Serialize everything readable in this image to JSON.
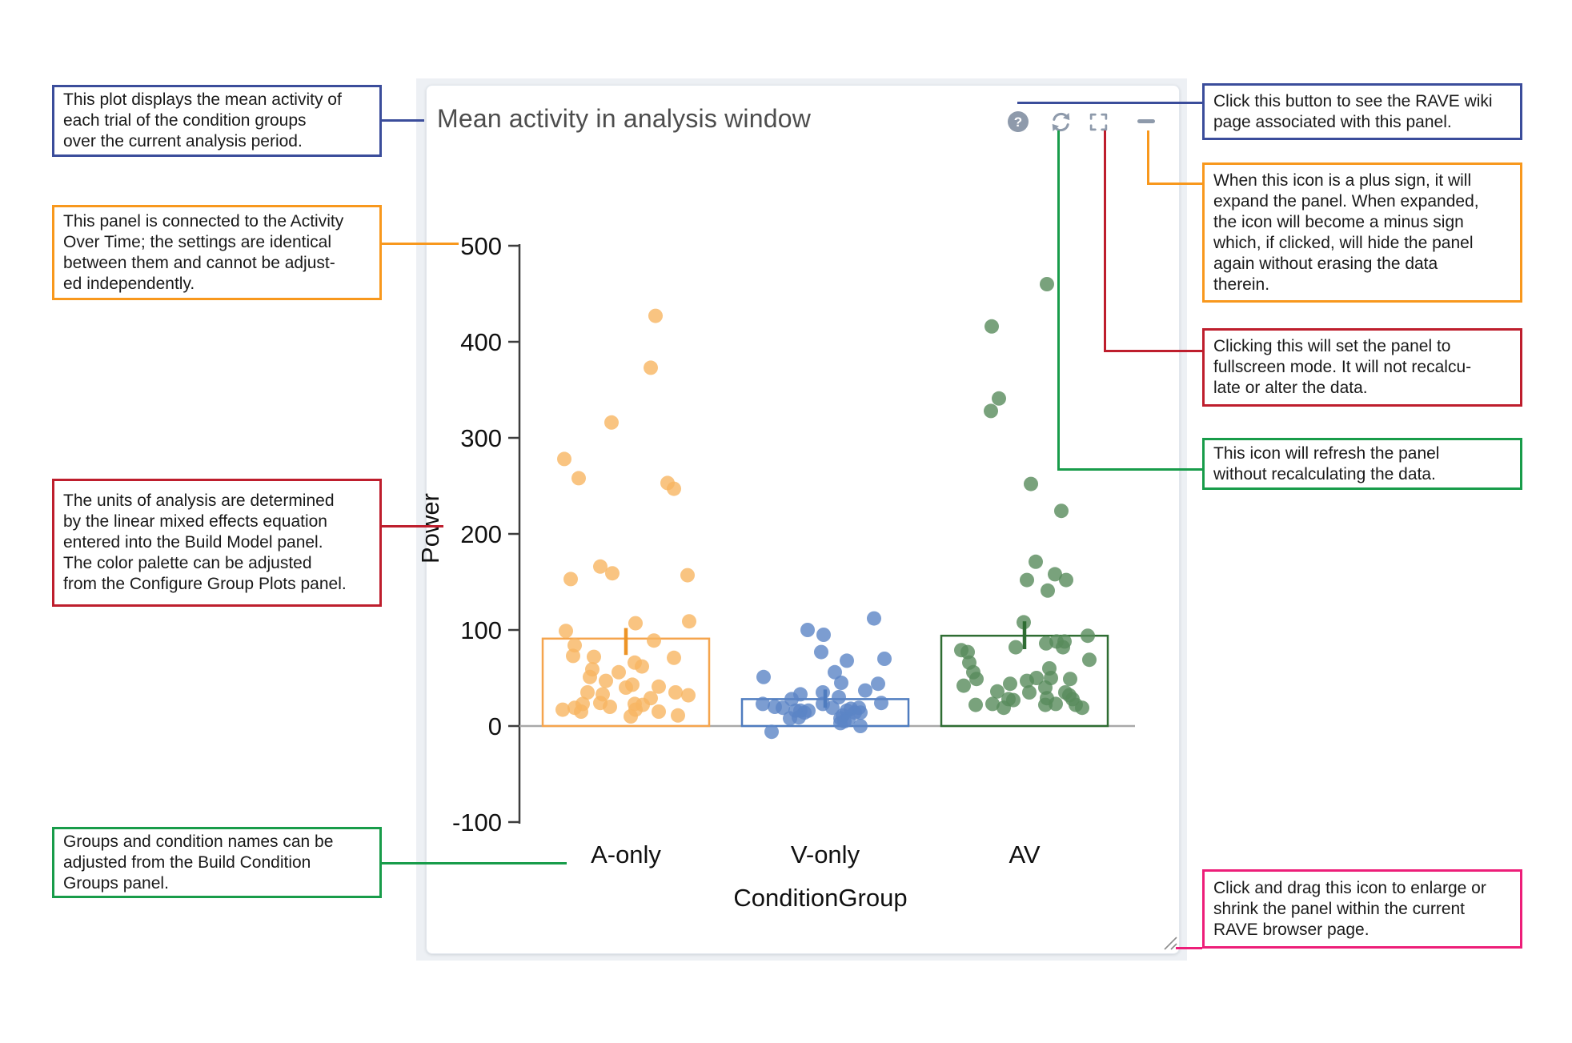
{
  "panel": {
    "title": "Mean activity in analysis window",
    "help_glyph": "?",
    "toolbar": {
      "help": "help",
      "refresh": "refresh",
      "fullscreen": "fullscreen",
      "collapse": "collapse-minus"
    },
    "icon_color": "#8e9aab"
  },
  "callouts": {
    "plot_description": {
      "color": "#3B4D9B",
      "text": "This plot displays the mean activity of\neach trial of the condition groups\nover the current analysis period."
    },
    "linked_panel": {
      "color": "#F8981D",
      "text": "This panel is connected to the Activity\nOver Time; the settings are identical\nbetween them and cannot be adjust-\ned independently."
    },
    "units_note": {
      "color": "#BE1E2D",
      "text": "The units of analysis are determined\nby the linear mixed effects equation\nentered into the Build Model panel.\nThe color palette can be adjusted\nfrom the Configure Group Plots panel."
    },
    "groups_note": {
      "color": "#189C4A",
      "text": "Groups and condition names can be\nadjusted from the Build Condition\nGroups panel."
    },
    "wiki_note": {
      "color": "#3B4D9B",
      "text": "Click this button to see the RAVE wiki\npage associated with this panel."
    },
    "expand_note": {
      "color": "#F8981D",
      "text": "When this icon is a plus sign, it will\nexpand the panel. When expanded,\nthe icon will become a minus sign\nwhich, if clicked, will hide the panel\nagain without erasing the data\ntherein."
    },
    "fullscreen_note": {
      "color": "#BE1E2D",
      "text": "Clicking this will set the panel to\nfullscreen mode. It will not recalcu-\nlate or alter the data."
    },
    "refresh_note": {
      "color": "#189C4A",
      "text": "This icon will refresh the panel\nwithout recalculating the data."
    },
    "resize_note": {
      "color": "#ED1E79",
      "text": "Click and drag this icon to enlarge or\nshrink the panel within the current\nRAVE browser page."
    }
  },
  "chart_data": {
    "type": "bar",
    "subtype": "bar-with-jittered-points-and-error-bars",
    "title": "Mean activity in analysis window",
    "xlabel": "ConditionGroup",
    "ylabel": "Power",
    "ylim": [
      -100,
      500
    ],
    "yticks": [
      500,
      400,
      300,
      200,
      100,
      0,
      -100
    ],
    "categories": [
      "A-only",
      "V-only",
      "AV"
    ],
    "grid": false,
    "legend": "none",
    "groups": [
      {
        "label": "A-only",
        "bar_mean": 91,
        "ci": [
          74,
          102
        ],
        "bar_color": "#F5A54E",
        "err_color": "#ED9426",
        "point_color": "#F7B562",
        "points": [
          [
            37,
            427
          ],
          [
            31,
            373
          ],
          [
            -18,
            316
          ],
          [
            -77,
            278
          ],
          [
            -59,
            258
          ],
          [
            52,
            253
          ],
          [
            60,
            247
          ],
          [
            -32,
            166
          ],
          [
            -17,
            159
          ],
          [
            -69,
            153
          ],
          [
            77,
            157
          ],
          [
            -75,
            99
          ],
          [
            12,
            107
          ],
          [
            79,
            109
          ],
          [
            -64,
            84
          ],
          [
            35,
            89
          ],
          [
            -66,
            73
          ],
          [
            -40,
            72
          ],
          [
            60,
            71
          ],
          [
            11,
            66
          ],
          [
            20,
            62
          ],
          [
            -42,
            59
          ],
          [
            -45,
            51
          ],
          [
            -9,
            56
          ],
          [
            -25,
            47
          ],
          [
            -48,
            35
          ],
          [
            -29,
            33
          ],
          [
            8,
            43
          ],
          [
            0,
            40
          ],
          [
            41,
            41
          ],
          [
            62,
            35
          ],
          [
            -32,
            24
          ],
          [
            -20,
            20
          ],
          [
            31,
            29
          ],
          [
            78,
            32
          ],
          [
            -79,
            17
          ],
          [
            -64,
            19
          ],
          [
            -56,
            15
          ],
          [
            11,
            23
          ],
          [
            21,
            22
          ],
          [
            12,
            17
          ],
          [
            41,
            15
          ],
          [
            65,
            11
          ],
          [
            6,
            10
          ],
          [
            -54,
            23
          ]
        ]
      },
      {
        "label": "V-only",
        "bar_mean": 28,
        "ci": [
          19,
          38
        ],
        "bar_color": "#4F7CBF",
        "err_color": "#4F7CBF",
        "point_color": "#5B84C6",
        "points": [
          [
            61,
            112
          ],
          [
            -22,
            100
          ],
          [
            -2,
            95
          ],
          [
            -5,
            77
          ],
          [
            27,
            68
          ],
          [
            74,
            70
          ],
          [
            12,
            56
          ],
          [
            -77,
            51
          ],
          [
            20,
            45
          ],
          [
            50,
            37
          ],
          [
            66,
            44
          ],
          [
            -3,
            35
          ],
          [
            -31,
            33
          ],
          [
            17,
            30
          ],
          [
            -42,
            28
          ],
          [
            70,
            24
          ],
          [
            -78,
            23
          ],
          [
            -63,
            20
          ],
          [
            -53,
            19
          ],
          [
            -37,
            16
          ],
          [
            -31,
            16
          ],
          [
            -26,
            14
          ],
          [
            -21,
            16
          ],
          [
            -3,
            23
          ],
          [
            9,
            19
          ],
          [
            22,
            11
          ],
          [
            27,
            16
          ],
          [
            32,
            18
          ],
          [
            37,
            14
          ],
          [
            42,
            19
          ],
          [
            44,
            14
          ],
          [
            -44,
            8
          ],
          [
            -33,
            9
          ],
          [
            19,
            8
          ],
          [
            24,
            5
          ],
          [
            29,
            7
          ],
          [
            44,
            0
          ],
          [
            -67,
            -6
          ],
          [
            19,
            3
          ]
        ]
      },
      {
        "label": "AV",
        "bar_mean": 94,
        "ci": [
          80,
          109
        ],
        "bar_color": "#2F6D33",
        "err_color": "#2F6D33",
        "point_color": "#578B5B",
        "points": [
          [
            28,
            460
          ],
          [
            -41,
            416
          ],
          [
            -32,
            341
          ],
          [
            -42,
            328
          ],
          [
            8,
            252
          ],
          [
            46,
            224
          ],
          [
            14,
            171
          ],
          [
            38,
            158
          ],
          [
            52,
            152
          ],
          [
            3,
            152
          ],
          [
            29,
            141
          ],
          [
            -1,
            108
          ],
          [
            -11,
            82
          ],
          [
            27,
            86
          ],
          [
            40,
            88
          ],
          [
            50,
            88
          ],
          [
            48,
            82
          ],
          [
            79,
            94
          ],
          [
            -79,
            79
          ],
          [
            -71,
            77
          ],
          [
            -69,
            66
          ],
          [
            -64,
            56
          ],
          [
            -60,
            49
          ],
          [
            81,
            69
          ],
          [
            -76,
            42
          ],
          [
            -34,
            36
          ],
          [
            -18,
            44
          ],
          [
            -40,
            23
          ],
          [
            -20,
            28
          ],
          [
            -26,
            19
          ],
          [
            -14,
            27
          ],
          [
            3,
            47
          ],
          [
            6,
            35
          ],
          [
            15,
            50
          ],
          [
            31,
            60
          ],
          [
            33,
            50
          ],
          [
            26,
            40
          ],
          [
            28,
            29
          ],
          [
            26,
            22
          ],
          [
            39,
            23
          ],
          [
            51,
            35
          ],
          [
            57,
            49
          ],
          [
            56,
            32
          ],
          [
            60,
            28
          ],
          [
            64,
            22
          ],
          [
            72,
            19
          ],
          [
            -61,
            22
          ]
        ]
      }
    ]
  }
}
